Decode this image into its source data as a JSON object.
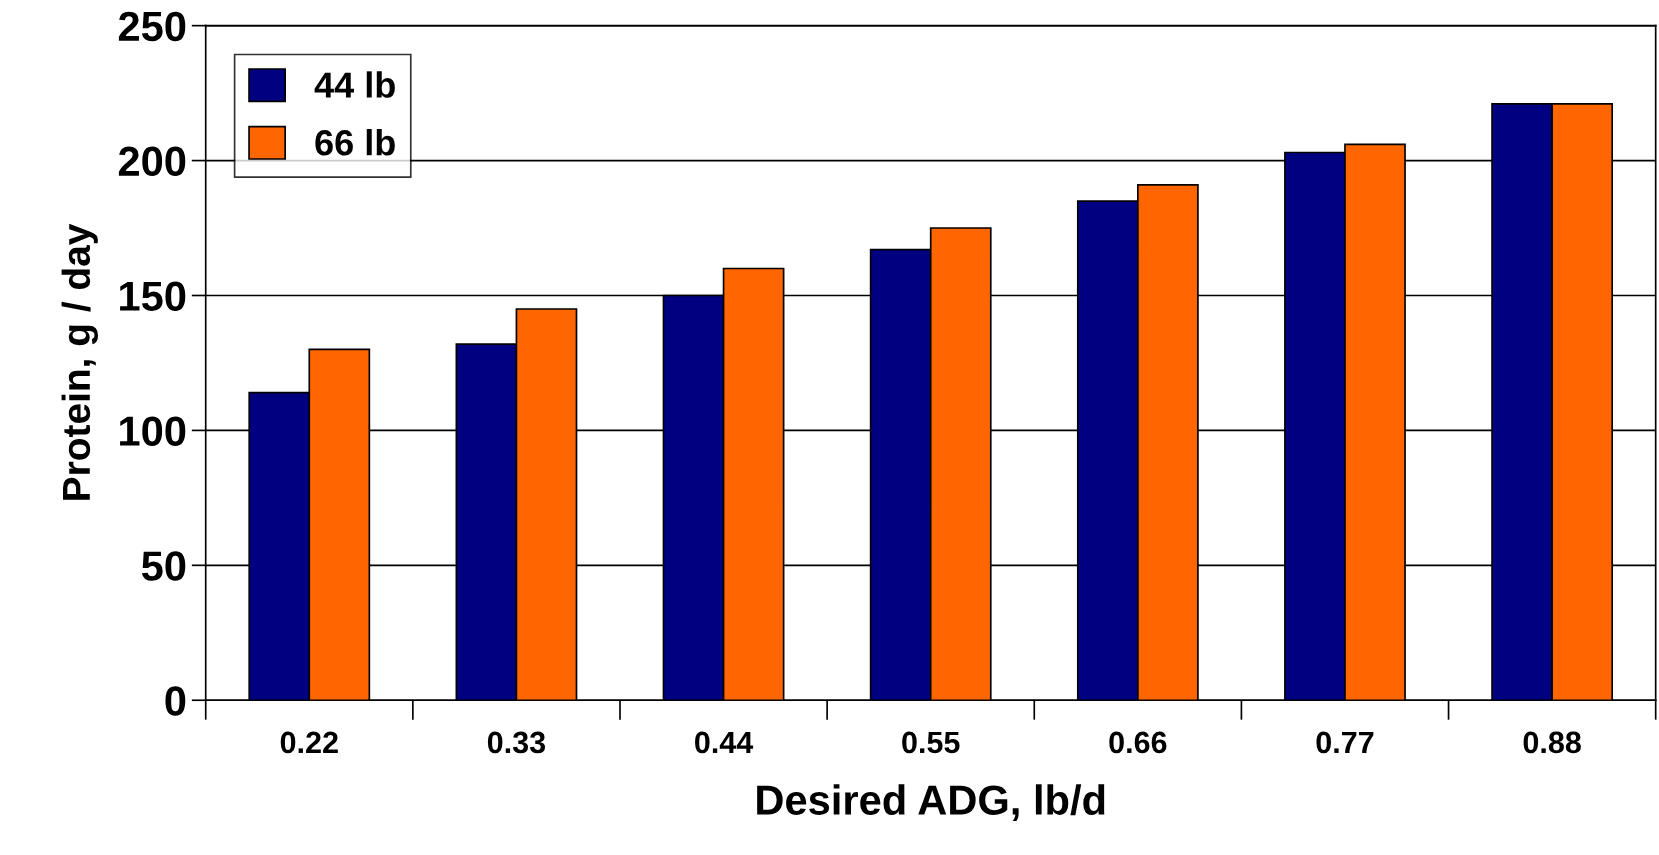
{
  "chart_data": {
    "type": "bar",
    "xlabel": "Desired ADG, lb/d",
    "ylabel": "Protein, g / day",
    "categories": [
      "0.22",
      "0.33",
      "0.44",
      "0.55",
      "0.66",
      "0.77",
      "0.88"
    ],
    "series": [
      {
        "name": "44 lb",
        "color": "#000080",
        "values": [
          114,
          132,
          150,
          167,
          185,
          203,
          221
        ]
      },
      {
        "name": "66 lb",
        "color": "#ff6600",
        "values": [
          130,
          145,
          160,
          175,
          191,
          206,
          221
        ]
      }
    ],
    "ylim": [
      0,
      250
    ],
    "yticks": [
      0,
      50,
      100,
      150,
      200,
      250
    ],
    "grid": "y",
    "legend": "top left"
  }
}
